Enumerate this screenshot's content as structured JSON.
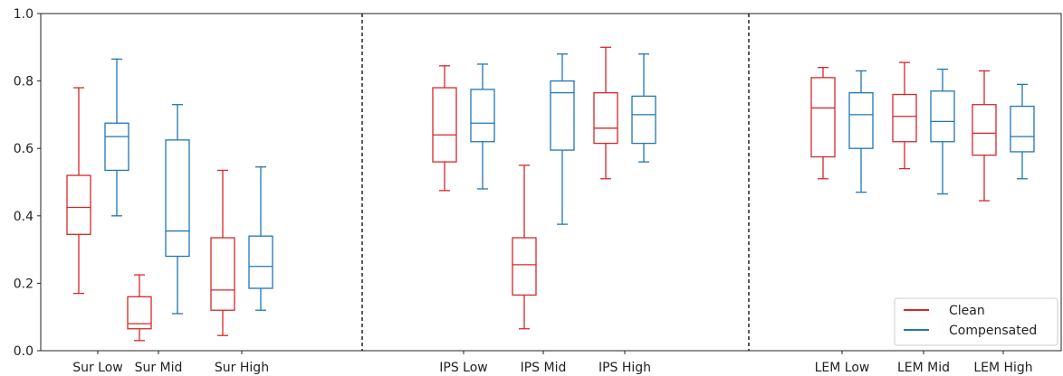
{
  "chart_data": {
    "type": "box",
    "ylim": [
      0.0,
      1.0
    ],
    "yticks": [
      "0.0",
      "0.2",
      "0.4",
      "0.6",
      "0.8",
      "1.0"
    ],
    "grid": false,
    "legend_position": "bottom-right",
    "series": [
      {
        "name": "Clean",
        "color": "#d62728"
      },
      {
        "name": "Compensated",
        "color": "#1f77b4"
      }
    ],
    "separators": "dashed vertical lines between groups",
    "categories": [
      "Sur Low",
      "Sur Mid",
      "Sur High",
      "IPS Low",
      "IPS Mid",
      "IPS High",
      "LEM Low",
      "LEM Mid",
      "LEM High"
    ],
    "boxes": [
      {
        "category": "Sur Low",
        "series": "Clean",
        "whisker_low": 0.17,
        "q1": 0.345,
        "median": 0.425,
        "q3": 0.52,
        "whisker_high": 0.78
      },
      {
        "category": "Sur Low",
        "series": "Compensated",
        "whisker_low": 0.4,
        "q1": 0.535,
        "median": 0.635,
        "q3": 0.675,
        "whisker_high": 0.865
      },
      {
        "category": "Sur Mid",
        "series": "Clean",
        "whisker_low": 0.03,
        "q1": 0.065,
        "median": 0.08,
        "q3": 0.16,
        "whisker_high": 0.225
      },
      {
        "category": "Sur Mid",
        "series": "Compensated",
        "whisker_low": 0.11,
        "q1": 0.28,
        "median": 0.355,
        "q3": 0.625,
        "whisker_high": 0.73
      },
      {
        "category": "Sur High",
        "series": "Clean",
        "whisker_low": 0.045,
        "q1": 0.12,
        "median": 0.18,
        "q3": 0.335,
        "whisker_high": 0.535
      },
      {
        "category": "Sur High",
        "series": "Compensated",
        "whisker_low": 0.12,
        "q1": 0.185,
        "median": 0.25,
        "q3": 0.34,
        "whisker_high": 0.545
      },
      {
        "category": "IPS Low",
        "series": "Clean",
        "whisker_low": 0.475,
        "q1": 0.56,
        "median": 0.64,
        "q3": 0.78,
        "whisker_high": 0.845
      },
      {
        "category": "IPS Low",
        "series": "Compensated",
        "whisker_low": 0.48,
        "q1": 0.62,
        "median": 0.675,
        "q3": 0.775,
        "whisker_high": 0.85
      },
      {
        "category": "IPS Mid",
        "series": "Clean",
        "whisker_low": 0.065,
        "q1": 0.165,
        "median": 0.255,
        "q3": 0.335,
        "whisker_high": 0.55
      },
      {
        "category": "IPS Mid",
        "series": "Compensated",
        "whisker_low": 0.375,
        "q1": 0.595,
        "median": 0.765,
        "q3": 0.8,
        "whisker_high": 0.88
      },
      {
        "category": "IPS High",
        "series": "Clean",
        "whisker_low": 0.51,
        "q1": 0.615,
        "median": 0.66,
        "q3": 0.765,
        "whisker_high": 0.9
      },
      {
        "category": "IPS High",
        "series": "Compensated",
        "whisker_low": 0.56,
        "q1": 0.615,
        "median": 0.7,
        "q3": 0.755,
        "whisker_high": 0.88
      },
      {
        "category": "LEM Low",
        "series": "Clean",
        "whisker_low": 0.51,
        "q1": 0.575,
        "median": 0.72,
        "q3": 0.81,
        "whisker_high": 0.84
      },
      {
        "category": "LEM Low",
        "series": "Compensated",
        "whisker_low": 0.47,
        "q1": 0.6,
        "median": 0.7,
        "q3": 0.765,
        "whisker_high": 0.83
      },
      {
        "category": "LEM Mid",
        "series": "Clean",
        "whisker_low": 0.54,
        "q1": 0.62,
        "median": 0.695,
        "q3": 0.76,
        "whisker_high": 0.855
      },
      {
        "category": "LEM Mid",
        "series": "Compensated",
        "whisker_low": 0.465,
        "q1": 0.62,
        "median": 0.68,
        "q3": 0.77,
        "whisker_high": 0.835
      },
      {
        "category": "LEM High",
        "series": "Clean",
        "whisker_low": 0.445,
        "q1": 0.58,
        "median": 0.645,
        "q3": 0.73,
        "whisker_high": 0.83
      },
      {
        "category": "LEM High",
        "series": "Compensated",
        "whisker_low": 0.51,
        "q1": 0.59,
        "median": 0.635,
        "q3": 0.725,
        "whisker_high": 0.79
      }
    ]
  }
}
